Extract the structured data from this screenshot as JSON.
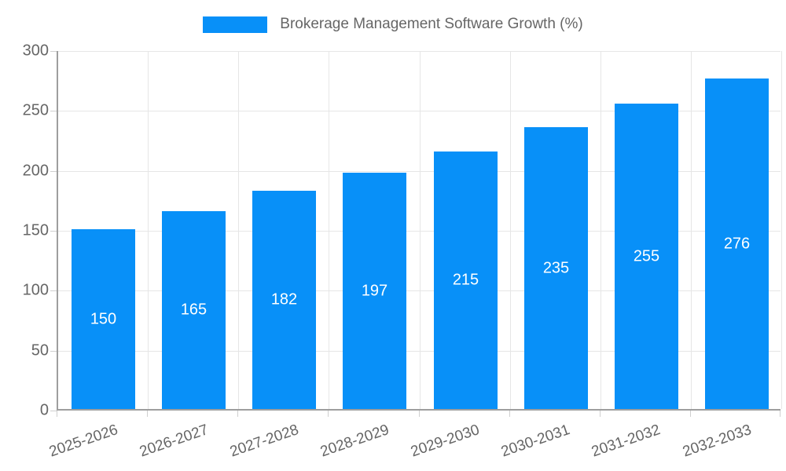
{
  "chart_data": {
    "type": "bar",
    "title": "Brokerage Management Software Growth (%)",
    "categories": [
      "2025-2026",
      "2026-2027",
      "2027-2028",
      "2028-2029",
      "2029-2030",
      "2030-2031",
      "2031-2032",
      "2032-2033"
    ],
    "values": [
      150,
      165,
      182,
      197,
      215,
      235,
      255,
      276
    ],
    "xlabel": "",
    "ylabel": "",
    "ylim": [
      0,
      300
    ],
    "yticks": [
      0,
      50,
      100,
      150,
      200,
      250,
      300
    ],
    "grid": true,
    "legend_position": "top-center",
    "bar_color": "#0890f8",
    "value_label_color": "#ffffff",
    "grid_color": "#e6e6e6",
    "tick_mark_color": "#cfcfcf",
    "axis_color": "#9e9e9e",
    "tick_label_color": "#666666",
    "title_color": "#666666"
  }
}
